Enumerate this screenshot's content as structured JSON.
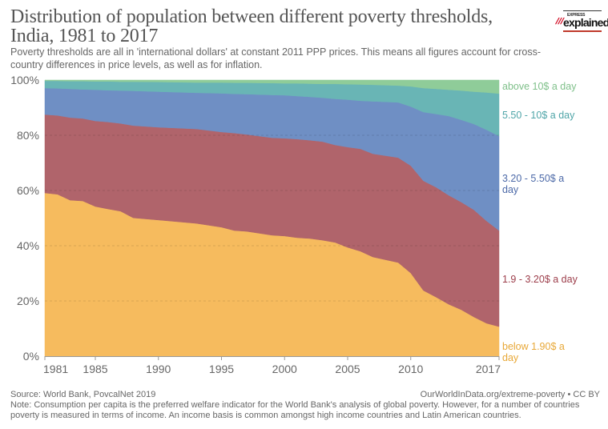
{
  "header": {
    "title": "Distribution of population between different poverty thresholds, India, 1981 to 2017",
    "subtitle": "Poverty thresholds are all in 'international dollars' at constant 2011 PPP prices. This means all figures account for cross-country differences in price levels, as well as for inflation.",
    "logo": {
      "small_text": "EXPRESS",
      "big_text": "explained",
      "dot": ".",
      "mark": "///"
    }
  },
  "footer": {
    "source": "Source: World Bank, PovcalNet 2019",
    "url": "OurWorldInData.org/extreme-poverty • CC BY",
    "note": "Note: Consumption per capita is the preferred welfare indicator for the World Bank's analysis of global poverty. However, for a number of countries poverty is measured in terms of income. An income basis is common amongst high income countries and Latin American countries."
  },
  "chart_data": {
    "type": "area",
    "stacked": true,
    "normalized": true,
    "title": "Distribution of population between different poverty thresholds, India, 1981 to 2017",
    "xlabel": "",
    "ylabel": "",
    "x": [
      1981,
      1982,
      1983,
      1984,
      1985,
      1986,
      1987,
      1988,
      1990,
      1993,
      1995,
      1996,
      1997,
      1999,
      2000,
      2001,
      2002,
      2003,
      2004,
      2005,
      2006,
      2007,
      2009,
      2010,
      2011,
      2012,
      2013,
      2014,
      2015,
      2016,
      2017
    ],
    "xlim": [
      1981,
      2017
    ],
    "ylim": [
      0,
      100
    ],
    "x_ticks": [
      "1981",
      "1985",
      "1990",
      "1995",
      "2000",
      "2005",
      "2010",
      "2017"
    ],
    "x_tick_values": [
      1981,
      1985,
      1990,
      1995,
      2000,
      2005,
      2010,
      2017
    ],
    "y_ticks": [
      "0%",
      "20%",
      "40%",
      "60%",
      "80%",
      "100%"
    ],
    "y_tick_values": [
      0,
      20,
      40,
      60,
      80,
      100
    ],
    "grid": true,
    "legend_placement": "right (inline labels)",
    "series": [
      {
        "name": "below 1.90$ a day",
        "color": "#f6bb5e",
        "label_color": "#e8a838",
        "values": [
          59.1,
          58.6,
          56.5,
          56.2,
          54.2,
          53.3,
          52.5,
          50.1,
          49.3,
          48.1,
          46.7,
          45.5,
          45.2,
          43.8,
          43.5,
          42.9,
          42.6,
          42.0,
          41.2,
          39.4,
          38.0,
          35.9,
          33.9,
          30.1,
          23.8,
          21.4,
          18.8,
          16.8,
          14.2,
          11.9,
          10.7
        ]
      },
      {
        "name": "1.9 - 3.20$ a day",
        "color": "#b0646b",
        "label_color": "#9c3d4a",
        "values": [
          28.4,
          28.6,
          29.9,
          29.9,
          31.0,
          31.5,
          31.8,
          33.4,
          33.6,
          34.2,
          34.5,
          35.3,
          35.1,
          35.3,
          35.4,
          35.7,
          35.6,
          35.7,
          35.3,
          36.3,
          37.1,
          37.4,
          38.0,
          38.9,
          39.7,
          39.8,
          39.5,
          39.0,
          38.8,
          37.1,
          34.8
        ]
      },
      {
        "name": "3.20 - 5.50$ a day",
        "color": "#6f8fc4",
        "label_color": "#4d6aa8",
        "values": [
          9.6,
          9.8,
          10.4,
          10.5,
          11.3,
          11.5,
          11.9,
          12.6,
          12.9,
          13.1,
          14.0,
          14.2,
          14.6,
          15.5,
          15.6,
          15.6,
          15.7,
          15.9,
          16.7,
          17.2,
          17.4,
          19.0,
          20.0,
          21.4,
          24.9,
          26.5,
          28.7,
          29.8,
          31.1,
          33.0,
          34.2
        ]
      },
      {
        "name": "5.50 - 10$ a day",
        "color": "#69b5b5",
        "label_color": "#4fa5a8",
        "values": [
          2.6,
          2.7,
          2.8,
          3.0,
          3.0,
          3.2,
          3.2,
          3.3,
          3.5,
          3.7,
          3.9,
          4.0,
          4.1,
          4.3,
          4.3,
          4.6,
          4.8,
          5.0,
          5.4,
          5.6,
          5.9,
          6.0,
          6.1,
          7.3,
          8.7,
          9.1,
          9.5,
          10.6,
          11.7,
          13.5,
          15.4
        ]
      },
      {
        "name": "above 10$ a day",
        "color": "#8fcc99",
        "label_color": "#7fc08a",
        "values": [
          0.3,
          0.3,
          0.4,
          0.4,
          0.5,
          0.5,
          0.6,
          0.6,
          0.7,
          0.9,
          0.9,
          1.0,
          1.0,
          1.1,
          1.2,
          1.2,
          1.3,
          1.4,
          1.4,
          1.5,
          1.6,
          1.7,
          2.0,
          2.3,
          2.9,
          3.2,
          3.5,
          3.8,
          4.2,
          4.5,
          4.9
        ]
      }
    ]
  }
}
